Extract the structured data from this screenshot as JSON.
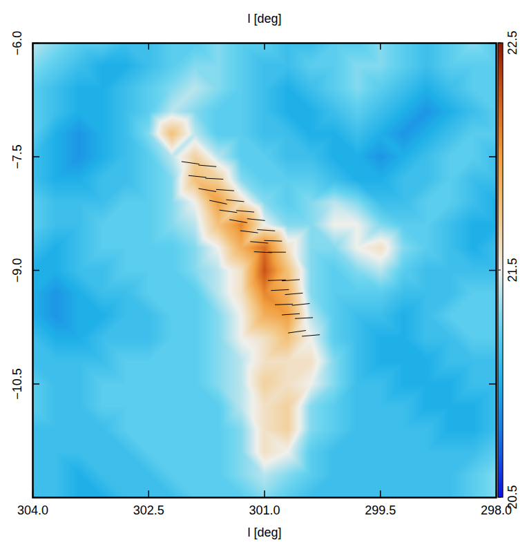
{
  "chart_data": {
    "type": "heatmap",
    "xlabel": "l [deg]",
    "x2label": "l [deg]",
    "xlim": [
      304,
      298
    ],
    "xticks": [
      {
        "value": 304,
        "label": "304.0"
      },
      {
        "value": 302.5,
        "label": "302.5"
      },
      {
        "value": 301,
        "label": "301.0"
      },
      {
        "value": 299.5,
        "label": "299.5"
      },
      {
        "value": 298,
        "label": "298.0"
      }
    ],
    "ylim": [
      -12,
      -6
    ],
    "yticks": [
      {
        "value": -6,
        "label": "−6.0"
      },
      {
        "value": -7.5,
        "label": "−7.5"
      },
      {
        "value": -9,
        "label": "−9.0"
      },
      {
        "value": -10.5,
        "label": "−10.5"
      }
    ],
    "x": [
      304,
      303.7,
      303.4,
      303.1,
      302.8,
      302.5,
      302.2,
      301.9,
      301.6,
      301.3,
      301,
      300.7,
      300.4,
      300.1,
      299.8,
      299.5,
      299.2,
      298.9,
      298.6,
      298.3,
      298
    ],
    "y": [
      -6,
      -6.3,
      -6.6,
      -6.9,
      -7.2,
      -7.5,
      -7.8,
      -8.1,
      -8.4,
      -8.7,
      -9,
      -9.3,
      -9.6,
      -9.9,
      -10.2,
      -10.5,
      -10.8,
      -11.1,
      -11.4,
      -11.7,
      -12
    ],
    "values": [
      [
        21.4,
        21.3,
        21.2,
        21.2,
        21.1,
        21.1,
        21.2,
        21.2,
        21.3,
        21.2,
        21.2,
        21.1,
        21.1,
        21.2,
        21.2,
        21.3,
        21.2,
        21.1,
        21.2,
        21.3,
        21.2
      ],
      [
        21.3,
        21.2,
        21.1,
        21.0,
        21.0,
        21.1,
        21.2,
        21.3,
        21.3,
        21.2,
        21.1,
        21.1,
        21.2,
        21.2,
        21.3,
        21.3,
        21.2,
        21.1,
        21.2,
        21.2,
        21.2
      ],
      [
        21.2,
        21.1,
        21.0,
        21.0,
        21.1,
        21.2,
        21.3,
        21.4,
        21.3,
        21.2,
        21.1,
        21.0,
        21.1,
        21.2,
        21.3,
        21.2,
        21.1,
        21.0,
        21.1,
        21.2,
        21.2
      ],
      [
        21.2,
        21.1,
        21.0,
        21.0,
        21.1,
        21.2,
        21.4,
        21.3,
        21.2,
        21.2,
        21.1,
        21.0,
        21.0,
        21.1,
        21.2,
        21.1,
        21.0,
        20.9,
        21.0,
        21.1,
        21.2
      ],
      [
        21.2,
        21.0,
        20.9,
        21.0,
        21.1,
        21.3,
        21.8,
        21.4,
        21.2,
        21.2,
        21.1,
        21.1,
        21.0,
        21.0,
        21.1,
        21.0,
        20.9,
        21.0,
        21.1,
        21.2,
        21.2
      ],
      [
        21.1,
        21.0,
        20.9,
        21.0,
        21.1,
        21.2,
        21.4,
        21.7,
        21.4,
        21.2,
        21.2,
        21.1,
        21.1,
        21.0,
        21.0,
        20.9,
        21.0,
        21.1,
        21.2,
        21.2,
        21.1
      ],
      [
        21.1,
        21.0,
        21.0,
        21.1,
        21.1,
        21.2,
        21.3,
        21.8,
        21.7,
        21.3,
        21.2,
        21.2,
        21.2,
        21.1,
        21.0,
        21.0,
        21.1,
        21.1,
        21.2,
        21.1,
        21.1
      ],
      [
        21.2,
        21.1,
        21.1,
        21.1,
        21.2,
        21.2,
        21.3,
        21.5,
        22.0,
        21.6,
        21.3,
        21.2,
        21.3,
        21.4,
        21.3,
        21.1,
        21.1,
        21.2,
        21.2,
        21.1,
        21.0
      ],
      [
        21.2,
        21.1,
        21.1,
        21.2,
        21.2,
        21.2,
        21.3,
        21.4,
        21.8,
        22.1,
        21.5,
        21.3,
        21.3,
        21.5,
        21.5,
        21.3,
        21.2,
        21.2,
        21.1,
        21.0,
        21.0
      ],
      [
        21.1,
        21.0,
        21.1,
        21.2,
        21.2,
        21.2,
        21.2,
        21.3,
        21.5,
        21.9,
        22.2,
        21.6,
        21.3,
        21.3,
        21.5,
        21.6,
        21.3,
        21.2,
        21.1,
        21.0,
        21.1
      ],
      [
        21.0,
        21.0,
        21.1,
        21.1,
        21.2,
        21.2,
        21.2,
        21.3,
        21.4,
        21.6,
        22.3,
        21.8,
        21.3,
        21.2,
        21.3,
        21.4,
        21.2,
        21.1,
        21.1,
        21.1,
        21.1
      ],
      [
        21.0,
        20.9,
        21.0,
        21.1,
        21.1,
        21.2,
        21.2,
        21.2,
        21.4,
        21.6,
        22.1,
        21.9,
        21.3,
        21.2,
        21.2,
        21.2,
        21.1,
        21.1,
        21.1,
        21.2,
        21.2
      ],
      [
        21.0,
        20.9,
        21.0,
        21.0,
        21.1,
        21.1,
        21.2,
        21.2,
        21.3,
        21.5,
        21.9,
        22.0,
        21.4,
        21.2,
        21.1,
        21.1,
        21.0,
        21.1,
        21.2,
        21.2,
        21.2
      ],
      [
        21.1,
        21.0,
        21.0,
        21.1,
        21.1,
        21.1,
        21.2,
        21.2,
        21.3,
        21.5,
        21.6,
        21.8,
        21.5,
        21.2,
        21.1,
        21.0,
        21.0,
        21.1,
        21.1,
        21.2,
        21.2
      ],
      [
        21.1,
        21.1,
        21.1,
        21.1,
        21.2,
        21.2,
        21.2,
        21.2,
        21.3,
        21.4,
        21.6,
        21.6,
        21.6,
        21.3,
        21.1,
        21.0,
        21.0,
        21.0,
        21.1,
        21.1,
        21.1
      ],
      [
        21.2,
        21.1,
        21.1,
        21.2,
        21.2,
        21.2,
        21.2,
        21.2,
        21.3,
        21.4,
        21.7,
        21.6,
        21.5,
        21.3,
        21.1,
        21.1,
        21.0,
        21.0,
        21.0,
        21.1,
        21.1
      ],
      [
        21.2,
        21.1,
        21.1,
        21.2,
        21.2,
        21.2,
        21.2,
        21.2,
        21.2,
        21.4,
        21.6,
        21.7,
        21.3,
        21.2,
        21.1,
        21.1,
        21.1,
        21.0,
        21.0,
        21.0,
        21.1
      ],
      [
        21.1,
        21.1,
        21.1,
        21.1,
        21.2,
        21.2,
        21.2,
        21.2,
        21.2,
        21.3,
        21.6,
        21.7,
        21.3,
        21.2,
        21.1,
        21.1,
        21.1,
        21.1,
        21.0,
        21.0,
        21.1
      ],
      [
        21.1,
        21.1,
        21.1,
        21.1,
        21.1,
        21.2,
        21.2,
        21.2,
        21.2,
        21.3,
        21.6,
        21.5,
        21.2,
        21.1,
        21.1,
        21.1,
        21.1,
        21.1,
        21.1,
        21.1,
        21.2
      ],
      [
        21.1,
        21.1,
        21.0,
        21.1,
        21.1,
        21.1,
        21.2,
        21.2,
        21.2,
        21.3,
        21.4,
        21.3,
        21.2,
        21.1,
        21.1,
        21.1,
        21.1,
        21.1,
        21.1,
        21.2,
        21.3
      ],
      [
        21.1,
        21.1,
        21.0,
        21.0,
        21.1,
        21.1,
        21.1,
        21.2,
        21.2,
        21.2,
        21.3,
        21.2,
        21.1,
        21.1,
        21.1,
        21.1,
        21.1,
        21.1,
        21.1,
        21.2,
        21.3
      ]
    ],
    "colorbar": {
      "range": [
        20.5,
        22.5
      ],
      "ticks": [
        20.5,
        21.5,
        22.5
      ]
    },
    "vectors": {
      "l": [
        301.96,
        301.74,
        301.87,
        301.65,
        301.74,
        301.51,
        301.6,
        301.38,
        301.47,
        301.25,
        301.34,
        301.11,
        301.2,
        300.98,
        301.07,
        300.89,
        301.02,
        300.84,
        300.84,
        300.66,
        300.8,
        300.62,
        300.75,
        300.53,
        300.66,
        300.49,
        300.58,
        300.4
      ],
      "b": [
        -7.58,
        -7.62,
        -7.76,
        -7.79,
        -7.94,
        -7.94,
        -8.1,
        -8.08,
        -8.22,
        -8.22,
        -8.35,
        -8.33,
        -8.49,
        -8.47,
        -8.63,
        -8.61,
        -8.76,
        -8.76,
        -9.13,
        -9.13,
        -9.26,
        -9.31,
        -9.45,
        -9.45,
        -9.58,
        -9.63,
        -9.81,
        -9.86
      ],
      "angle": [
        -8,
        -5,
        -6,
        -3,
        -10,
        -4,
        -12,
        -6,
        -8,
        -5,
        -10,
        -6,
        -7,
        -4,
        -5,
        -2,
        -3,
        0,
        2,
        4,
        3,
        5,
        2,
        6,
        4,
        3,
        8,
        5
      ]
    }
  }
}
